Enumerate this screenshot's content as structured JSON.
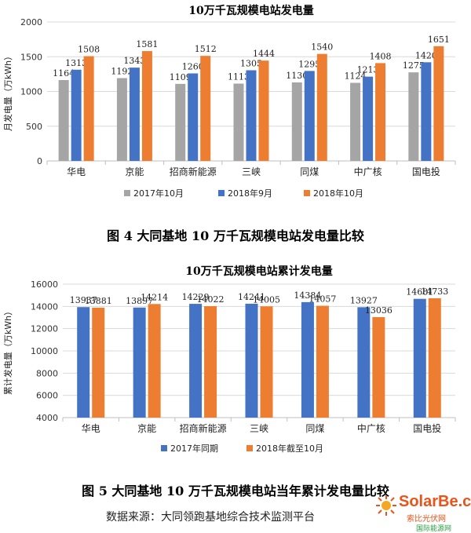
{
  "chart_data": [
    {
      "type": "bar",
      "title": "10万千瓦规模电站发电量",
      "ylabel": "月发电量（万kWh）",
      "xlabel": "",
      "ylim": [
        0,
        2000
      ],
      "yticks": [
        0,
        500,
        1000,
        1500,
        2000
      ],
      "grid": true,
      "legend": "bottom",
      "categories": [
        "华电",
        "京能",
        "招商新能源",
        "三峡",
        "同煤",
        "中广核",
        "国电投"
      ],
      "series": [
        {
          "name": "2017年10月",
          "color": "#a5a5a5",
          "values": [
            1164,
            1192,
            1109,
            1113,
            1130,
            1124,
            1275
          ]
        },
        {
          "name": "2018年9月",
          "color": "#4472c4",
          "values": [
            1313,
            1343,
            1260,
            1305,
            1295,
            1213,
            1420
          ]
        },
        {
          "name": "2018年10月",
          "color": "#ed7d31",
          "values": [
            1508,
            1581,
            1512,
            1444,
            1540,
            1408,
            1651
          ]
        }
      ]
    },
    {
      "type": "bar",
      "title": "10万千瓦规模电站累计发电量",
      "ylabel": "累计发电量（万kWh）",
      "xlabel": "",
      "ylim": [
        4000,
        16000
      ],
      "yticks": [
        4000,
        6000,
        8000,
        10000,
        12000,
        14000,
        16000
      ],
      "grid": true,
      "legend": "bottom",
      "categories": [
        "华电",
        "京能",
        "招商新能源",
        "三峡",
        "同煤",
        "中广核",
        "国电投"
      ],
      "series": [
        {
          "name": "2017年同期",
          "color": "#4472c4",
          "values": [
            13937,
            13897,
            14229,
            14241,
            14384,
            13927,
            14681
          ]
        },
        {
          "name": "2018年截至10月",
          "color": "#ed7d31",
          "values": [
            13881,
            14214,
            14022,
            14005,
            14057,
            13036,
            14733
          ]
        }
      ]
    }
  ],
  "captions": {
    "fig4": "图 4 大同基地 10 万千瓦规模电站发电量比较",
    "fig5": "图 5 大同基地 10 万千瓦规模电站当年累计发电量比较"
  },
  "source": "数据来源：大同领跑基地综合技术监测平台",
  "logo": {
    "main": "SolarBe.com",
    "sub": "索比光伏网",
    "cn": "国际能源网"
  }
}
